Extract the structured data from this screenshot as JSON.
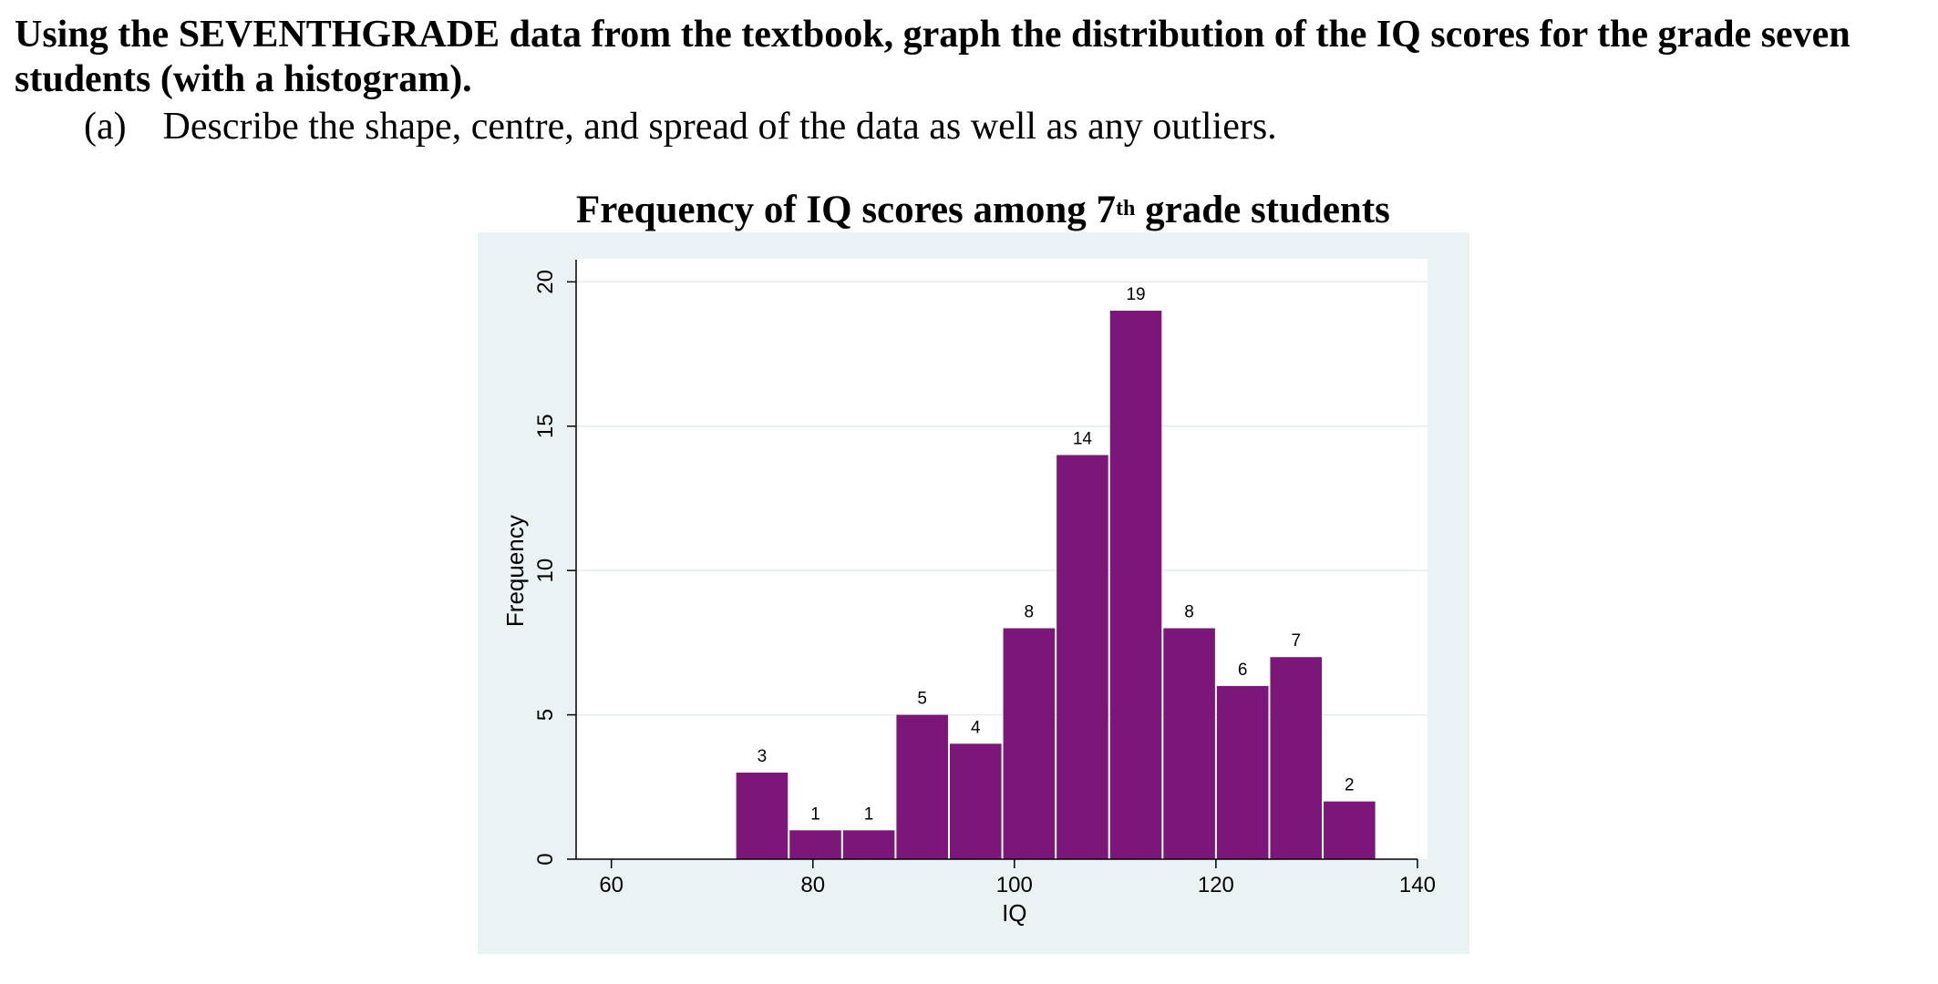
{
  "question": {
    "text": "Using the SEVENTHGRADE data from the textbook, graph the distribution of the IQ scores for the grade seven students (with a histogram).",
    "part_label": "(a)",
    "part_text": "Describe the shape, centre, and spread of the data as well as any outliers."
  },
  "chart_title": {
    "main": "Frequency of IQ scores among 7",
    "superscript": "th",
    "rest": " grade students"
  },
  "colors": {
    "bar": "#7b1778",
    "frame_bg": "#eaf2f3",
    "plot_bg": "#ffffff",
    "grid": "#e6ecee"
  },
  "chart_data": {
    "type": "bar",
    "title": "Frequency of IQ scores among 7th grade students",
    "xlabel": "IQ",
    "ylabel": "Frequency",
    "xlim": [
      56.5,
      141
    ],
    "ylim": [
      0,
      20.8
    ],
    "xticks": [
      60,
      80,
      100,
      120,
      140
    ],
    "yticks": [
      0,
      5,
      10,
      15,
      20
    ],
    "bin_width": 5.3,
    "bins": [
      {
        "start": 72.3,
        "value": 3
      },
      {
        "start": 77.6,
        "value": 1
      },
      {
        "start": 82.9,
        "value": 1
      },
      {
        "start": 88.2,
        "value": 5
      },
      {
        "start": 93.5,
        "value": 4
      },
      {
        "start": 98.8,
        "value": 8
      },
      {
        "start": 104.1,
        "value": 14
      },
      {
        "start": 109.4,
        "value": 19
      },
      {
        "start": 114.7,
        "value": 8
      },
      {
        "start": 120.0,
        "value": 6
      },
      {
        "start": 125.3,
        "value": 7
      },
      {
        "start": 130.6,
        "value": 2
      }
    ]
  }
}
